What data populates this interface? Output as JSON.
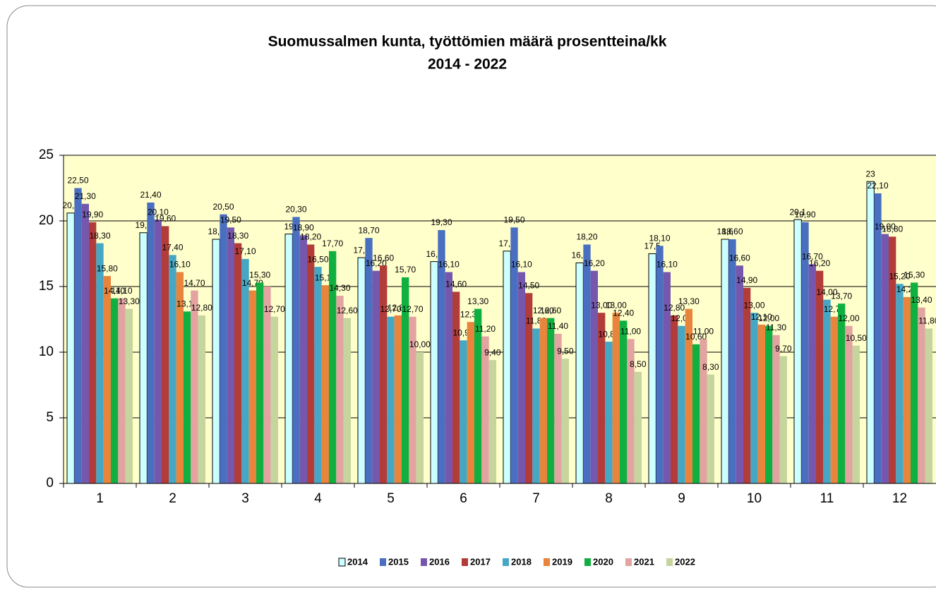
{
  "chart_data": {
    "type": "bar",
    "title": "Suomussalmen kunta, työttömien määrä prosentteina/kk",
    "subtitle": "2014 - 2022",
    "categories": [
      "1",
      "2",
      "3",
      "4",
      "5",
      "6",
      "7",
      "8",
      "9",
      "10",
      "11",
      "12"
    ],
    "ylim": [
      0,
      25
    ],
    "yticks": [
      0,
      5,
      10,
      15,
      20,
      25
    ],
    "grid": true,
    "series": [
      {
        "name": "2014",
        "color": "#ccffff",
        "values": [
          20.6,
          19.1,
          18.6,
          19,
          17.2,
          16.9,
          17.7,
          16.8,
          17.5,
          18.6,
          20.1,
          23
        ],
        "value_labels": [
          "20,6",
          "19,1",
          "18,6",
          "19",
          "17,2",
          "16,9",
          "17,7",
          "16,8",
          "17,5",
          "18,6",
          "20,1",
          "23"
        ]
      },
      {
        "name": "2015",
        "color": "#4a6fc0",
        "values": [
          22.5,
          21.4,
          20.5,
          20.3,
          18.7,
          19.3,
          19.5,
          18.2,
          18.1,
          18.6,
          19.9,
          22.1
        ],
        "value_labels": [
          "22,50",
          "21,40",
          "20,50",
          "20,30",
          "18,70",
          "19,30",
          "19,50",
          "18,20",
          "18,10",
          "18,60",
          "19,90",
          "22,10"
        ]
      },
      {
        "name": "2016",
        "color": "#7558ad",
        "values": [
          21.3,
          20.1,
          19.5,
          18.9,
          16.2,
          16.1,
          16.1,
          16.2,
          16.1,
          16.6,
          16.7,
          19.0
        ],
        "value_labels": [
          "21,30",
          "20,10",
          "19,50",
          "18,90",
          "16,20",
          "16,10",
          "16,10",
          "16,20",
          "16,10",
          "16,60",
          "16,70",
          "19,00"
        ]
      },
      {
        "name": "2017",
        "color": "#b23c3a",
        "values": [
          19.9,
          19.6,
          18.3,
          18.2,
          16.6,
          14.6,
          14.5,
          13.0,
          12.8,
          14.9,
          16.2,
          18.8
        ],
        "value_labels": [
          "19,90",
          "19,60",
          "18,30",
          "18,20",
          "16,60",
          "14,60",
          "14,50",
          "13,00",
          "12,80",
          "14,90",
          "16,20",
          "18,80"
        ]
      },
      {
        "name": "2018",
        "color": "#45a7c4",
        "values": [
          18.3,
          17.4,
          17.1,
          16.5,
          12.7,
          10.9,
          11.8,
          10.8,
          12.0,
          13.0,
          14.0,
          15.2
        ],
        "value_labels": [
          "18,30",
          "17,40",
          "17,10",
          "16,50",
          "12,70",
          "10,90",
          "11,80",
          "10,80",
          "12,00",
          "13,00",
          "14,00",
          "15,20"
        ]
      },
      {
        "name": "2019",
        "color": "#e8843c",
        "values": [
          15.8,
          16.1,
          14.7,
          15.1,
          12.8,
          12.3,
          12.6,
          13.0,
          13.3,
          12.1,
          12.7,
          14.2
        ],
        "value_labels": [
          "15,80",
          "16,10",
          "14,70",
          "15,10",
          "12,80",
          "12,30",
          "12,60",
          "13,00",
          "13,30",
          "12,10",
          "12,70",
          "14,20"
        ]
      },
      {
        "name": "2020",
        "color": "#10b040",
        "values": [
          14.1,
          13.1,
          15.3,
          17.7,
          15.7,
          13.3,
          12.6,
          12.4,
          10.6,
          12.0,
          13.7,
          15.3
        ],
        "value_labels": [
          "14,10",
          "13,10",
          "15,30",
          "17,70",
          "15,70",
          "13,30",
          "12,60",
          "12,40",
          "10,60",
          "12,00",
          "13,70",
          "15,30"
        ]
      },
      {
        "name": "2021",
        "color": "#e2a3a1",
        "values": [
          14.1,
          14.7,
          15.0,
          14.3,
          12.7,
          11.2,
          11.4,
          11.0,
          11.0,
          11.3,
          12.0,
          13.4
        ],
        "value_labels": [
          "14,10",
          "14,70",
          null,
          "14,30",
          "12,70",
          "11,20",
          "11,40",
          "11,00",
          "11,00",
          "11,30",
          "12,00",
          "13,40"
        ]
      },
      {
        "name": "2022",
        "color": "#c5d59d",
        "values": [
          13.3,
          12.8,
          12.7,
          12.6,
          10.0,
          9.4,
          9.5,
          8.5,
          8.3,
          9.7,
          10.5,
          11.8
        ],
        "value_labels": [
          "13,30",
          "12,80",
          "12,70",
          "12,60",
          "10,00",
          "9,40",
          "9,50",
          "8,50",
          "8,30",
          "9,70",
          "10,50",
          "11,80"
        ]
      }
    ]
  }
}
